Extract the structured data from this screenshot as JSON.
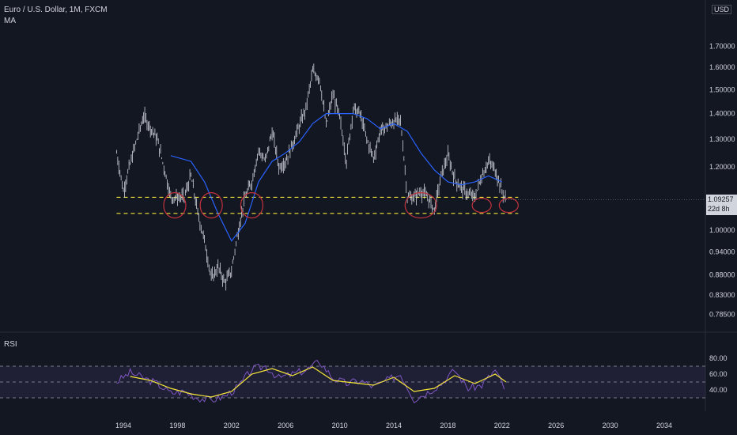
{
  "header": {
    "title": "Euro / U.S. Dollar, 1M, FXCM",
    "indicator": "MA",
    "currency": "USD"
  },
  "rsi_panel": {
    "label": "RSI"
  },
  "price_tag": {
    "value": "1.09257",
    "countdown": "22d 8h"
  },
  "colors": {
    "background": "#131722",
    "candles": "#d1d4dc",
    "ma_line": "#2962ff",
    "support_lines": "#f5e63a",
    "circles": "#c0323c",
    "rsi_line": "#7e57c2",
    "rsi_ma": "#f5e63a",
    "rsi_band": "#7e57c2"
  },
  "chart_data": [
    {
      "type": "line",
      "title": "Euro / U.S. Dollar, 1M, FXCM",
      "ylim": [
        0.75,
        1.85
      ],
      "y_ticks": [
        "1.70000",
        "1.60000",
        "1.50000",
        "1.40000",
        "1.30000",
        "1.20000",
        "1.00000",
        "0.94000",
        "0.88000",
        "0.83000",
        "0.78500"
      ],
      "x_ticks": [
        "1994",
        "1998",
        "2002",
        "2006",
        "2010",
        "2014",
        "2018",
        "2022",
        "2026",
        "2030",
        "2034"
      ],
      "series": [
        {
          "kind": "price",
          "x": [
            1993.5,
            1994.0,
            1995.0,
            1995.5,
            1996.5,
            1997.0,
            1997.5,
            1998.0,
            1998.5,
            1999.0,
            1999.5,
            2000.0,
            2000.5,
            2001.0,
            2001.5,
            2002.0,
            2002.5,
            2003.0,
            2003.5,
            2004.0,
            2004.5,
            2005.0,
            2005.5,
            2006.0,
            2006.5,
            2007.0,
            2007.5,
            2008.0,
            2008.5,
            2009.0,
            2009.5,
            2010.0,
            2010.5,
            2011.0,
            2011.5,
            2012.0,
            2012.5,
            2013.0,
            2013.5,
            2014.0,
            2014.5,
            2015.0,
            2015.5,
            2016.0,
            2016.5,
            2017.0,
            2017.5,
            2018.0,
            2018.5,
            2019.0,
            2019.5,
            2020.0,
            2020.5,
            2021.0,
            2021.5,
            2022.0,
            2022.3
          ],
          "y": [
            1.25,
            1.12,
            1.3,
            1.39,
            1.3,
            1.2,
            1.1,
            1.1,
            1.1,
            1.17,
            1.05,
            0.97,
            0.87,
            0.9,
            0.86,
            0.89,
            1.0,
            1.1,
            1.15,
            1.26,
            1.22,
            1.33,
            1.2,
            1.22,
            1.28,
            1.35,
            1.42,
            1.58,
            1.55,
            1.35,
            1.48,
            1.38,
            1.22,
            1.42,
            1.4,
            1.3,
            1.23,
            1.33,
            1.35,
            1.37,
            1.37,
            1.1,
            1.1,
            1.12,
            1.1,
            1.06,
            1.17,
            1.24,
            1.16,
            1.13,
            1.11,
            1.1,
            1.17,
            1.22,
            1.19,
            1.12,
            1.09
          ]
        },
        {
          "kind": "moving-average",
          "x": [
            1997.5,
            1999.0,
            2000.0,
            2001.0,
            2002.0,
            2003.0,
            2004.0,
            2005.0,
            2006.0,
            2007.0,
            2008.0,
            2009.0,
            2010.0,
            2011.0,
            2012.0,
            2013.0,
            2014.0,
            2015.0,
            2016.0,
            2017.0,
            2018.0,
            2019.0,
            2020.0,
            2021.0,
            2022.0
          ],
          "y": [
            1.24,
            1.22,
            1.15,
            1.05,
            0.97,
            1.02,
            1.15,
            1.22,
            1.25,
            1.29,
            1.36,
            1.4,
            1.4,
            1.4,
            1.38,
            1.34,
            1.36,
            1.33,
            1.25,
            1.19,
            1.15,
            1.14,
            1.15,
            1.17,
            1.15
          ]
        },
        {
          "kind": "support",
          "y": [
            1.1,
            1.05
          ]
        }
      ],
      "annotations": {
        "circles_at_years": [
          1997.8,
          2000.5,
          2003.5,
          2016.0,
          2020.5,
          2022.5
        ]
      }
    },
    {
      "type": "line",
      "title": "RSI",
      "ylim": [
        20,
        90
      ],
      "y_ticks": [
        "80.00",
        "60.00",
        "40.00"
      ],
      "band_lines": [
        70,
        50,
        30
      ],
      "series": [
        {
          "kind": "rsi",
          "x": [
            1993.5,
            1994.5,
            1995.5,
            1996.5,
            1997.5,
            1998.5,
            1999.5,
            2000.5,
            2001.5,
            2002.5,
            2003.5,
            2004.5,
            2005.5,
            2006.5,
            2007.5,
            2008.5,
            2009.5,
            2010.5,
            2011.5,
            2012.5,
            2013.5,
            2014.5,
            2015.5,
            2016.5,
            2017.5,
            2018.5,
            2019.5,
            2020.5,
            2021.5,
            2022.3
          ],
          "y": [
            50,
            62,
            55,
            48,
            36,
            38,
            30,
            27,
            32,
            44,
            66,
            70,
            55,
            60,
            65,
            76,
            55,
            48,
            52,
            44,
            52,
            60,
            28,
            37,
            48,
            65,
            42,
            46,
            65,
            38
          ]
        },
        {
          "kind": "rsi-ma",
          "x": [
            1994.5,
            1996.0,
            1997.5,
            1999.0,
            2000.5,
            2002.0,
            2003.5,
            2005.0,
            2006.5,
            2008.0,
            2009.5,
            2011.0,
            2012.5,
            2014.0,
            2015.5,
            2017.0,
            2018.5,
            2020.0,
            2021.5,
            2022.3
          ],
          "y": [
            57,
            52,
            42,
            35,
            31,
            38,
            60,
            67,
            58,
            69,
            52,
            49,
            46,
            56,
            38,
            42,
            58,
            48,
            60,
            50
          ]
        }
      ]
    }
  ]
}
